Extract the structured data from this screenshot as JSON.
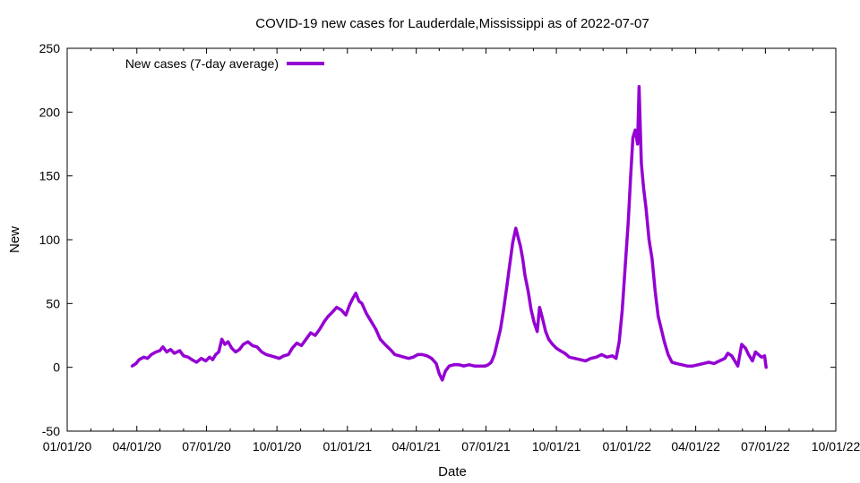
{
  "chart_data": {
    "type": "line",
    "title": "COVID-19 new cases for Lauderdale,Mississippi as of 2022-07-07",
    "xlabel": "Date",
    "ylabel": "New",
    "xlim": [
      "2020-01-01",
      "2022-10-01"
    ],
    "ylim": [
      -50,
      250
    ],
    "x_ticks": [
      "01/01/20",
      "04/01/20",
      "07/01/20",
      "10/01/20",
      "01/01/21",
      "04/01/21",
      "07/01/21",
      "10/01/21",
      "01/01/22",
      "04/01/22",
      "07/01/22",
      "10/01/22"
    ],
    "y_ticks": [
      "-50",
      "0",
      "50",
      "100",
      "150",
      "200",
      "250"
    ],
    "grid": false,
    "legend_position": "top-left",
    "series": [
      {
        "name": "New cases (7-day average)",
        "color": "#9400d3",
        "points": [
          [
            "2020-03-26",
            1
          ],
          [
            "2020-03-31",
            3
          ],
          [
            "2020-04-04",
            6
          ],
          [
            "2020-04-10",
            8
          ],
          [
            "2020-04-15",
            7
          ],
          [
            "2020-04-20",
            10
          ],
          [
            "2020-04-26",
            12
          ],
          [
            "2020-05-01",
            13
          ],
          [
            "2020-05-05",
            16
          ],
          [
            "2020-05-10",
            12
          ],
          [
            "2020-05-15",
            14
          ],
          [
            "2020-05-20",
            11
          ],
          [
            "2020-05-27",
            13
          ],
          [
            "2020-06-01",
            9
          ],
          [
            "2020-06-07",
            8
          ],
          [
            "2020-06-12",
            6
          ],
          [
            "2020-06-18",
            4
          ],
          [
            "2020-06-24",
            7
          ],
          [
            "2020-06-30",
            5
          ],
          [
            "2020-07-05",
            8
          ],
          [
            "2020-07-09",
            6
          ],
          [
            "2020-07-13",
            10
          ],
          [
            "2020-07-17",
            12
          ],
          [
            "2020-07-21",
            22
          ],
          [
            "2020-07-25",
            18
          ],
          [
            "2020-07-29",
            20
          ],
          [
            "2020-08-03",
            15
          ],
          [
            "2020-08-08",
            12
          ],
          [
            "2020-08-13",
            14
          ],
          [
            "2020-08-18",
            18
          ],
          [
            "2020-08-24",
            20
          ],
          [
            "2020-08-30",
            17
          ],
          [
            "2020-09-05",
            16
          ],
          [
            "2020-09-11",
            12
          ],
          [
            "2020-09-17",
            10
          ],
          [
            "2020-09-23",
            9
          ],
          [
            "2020-09-29",
            8
          ],
          [
            "2020-10-04",
            7
          ],
          [
            "2020-10-10",
            9
          ],
          [
            "2020-10-16",
            10
          ],
          [
            "2020-10-21",
            15
          ],
          [
            "2020-10-27",
            19
          ],
          [
            "2020-11-02",
            17
          ],
          [
            "2020-11-08",
            22
          ],
          [
            "2020-11-14",
            27
          ],
          [
            "2020-11-20",
            25
          ],
          [
            "2020-11-26",
            30
          ],
          [
            "2020-12-02",
            36
          ],
          [
            "2020-12-07",
            40
          ],
          [
            "2020-12-12",
            43
          ],
          [
            "2020-12-18",
            47
          ],
          [
            "2020-12-24",
            45
          ],
          [
            "2020-12-30",
            41
          ],
          [
            "2021-01-04",
            49
          ],
          [
            "2021-01-08",
            54
          ],
          [
            "2021-01-12",
            58
          ],
          [
            "2021-01-16",
            52
          ],
          [
            "2021-01-20",
            50
          ],
          [
            "2021-01-26",
            42
          ],
          [
            "2021-02-01",
            36
          ],
          [
            "2021-02-07",
            30
          ],
          [
            "2021-02-13",
            22
          ],
          [
            "2021-02-19",
            18
          ],
          [
            "2021-02-26",
            14
          ],
          [
            "2021-03-04",
            10
          ],
          [
            "2021-03-10",
            9
          ],
          [
            "2021-03-16",
            8
          ],
          [
            "2021-03-22",
            7
          ],
          [
            "2021-03-28",
            8
          ],
          [
            "2021-04-03",
            10
          ],
          [
            "2021-04-09",
            10
          ],
          [
            "2021-04-15",
            9
          ],
          [
            "2021-04-21",
            7
          ],
          [
            "2021-04-27",
            3
          ],
          [
            "2021-05-01",
            -5
          ],
          [
            "2021-05-05",
            -10
          ],
          [
            "2021-05-09",
            -3
          ],
          [
            "2021-05-14",
            1
          ],
          [
            "2021-05-20",
            2
          ],
          [
            "2021-05-27",
            2
          ],
          [
            "2021-06-02",
            1
          ],
          [
            "2021-06-09",
            2
          ],
          [
            "2021-06-16",
            1
          ],
          [
            "2021-06-23",
            1
          ],
          [
            "2021-06-30",
            1
          ],
          [
            "2021-07-04",
            2
          ],
          [
            "2021-07-08",
            4
          ],
          [
            "2021-07-12",
            10
          ],
          [
            "2021-07-16",
            20
          ],
          [
            "2021-07-20",
            30
          ],
          [
            "2021-07-24",
            45
          ],
          [
            "2021-07-28",
            62
          ],
          [
            "2021-08-01",
            80
          ],
          [
            "2021-08-05",
            98
          ],
          [
            "2021-08-09",
            109
          ],
          [
            "2021-08-12",
            102
          ],
          [
            "2021-08-15",
            95
          ],
          [
            "2021-08-18",
            85
          ],
          [
            "2021-08-21",
            72
          ],
          [
            "2021-08-25",
            60
          ],
          [
            "2021-08-29",
            45
          ],
          [
            "2021-09-02",
            35
          ],
          [
            "2021-09-06",
            28
          ],
          [
            "2021-09-09",
            47
          ],
          [
            "2021-09-13",
            38
          ],
          [
            "2021-09-17",
            28
          ],
          [
            "2021-09-21",
            22
          ],
          [
            "2021-09-26",
            18
          ],
          [
            "2021-10-01",
            15
          ],
          [
            "2021-10-06",
            13
          ],
          [
            "2021-10-12",
            11
          ],
          [
            "2021-10-18",
            8
          ],
          [
            "2021-10-25",
            7
          ],
          [
            "2021-11-01",
            6
          ],
          [
            "2021-11-08",
            5
          ],
          [
            "2021-11-15",
            7
          ],
          [
            "2021-11-22",
            8
          ],
          [
            "2021-11-29",
            10
          ],
          [
            "2021-12-06",
            8
          ],
          [
            "2021-12-13",
            9
          ],
          [
            "2021-12-18",
            7
          ],
          [
            "2021-12-22",
            20
          ],
          [
            "2021-12-26",
            45
          ],
          [
            "2021-12-30",
            80
          ],
          [
            "2022-01-03",
            115
          ],
          [
            "2022-01-06",
            150
          ],
          [
            "2022-01-09",
            180
          ],
          [
            "2022-01-12",
            186
          ],
          [
            "2022-01-15",
            175
          ],
          [
            "2022-01-17",
            220
          ],
          [
            "2022-01-20",
            160
          ],
          [
            "2022-01-23",
            140
          ],
          [
            "2022-01-26",
            125
          ],
          [
            "2022-01-30",
            100
          ],
          [
            "2022-02-03",
            85
          ],
          [
            "2022-02-07",
            60
          ],
          [
            "2022-02-11",
            40
          ],
          [
            "2022-02-15",
            30
          ],
          [
            "2022-02-19",
            20
          ],
          [
            "2022-02-24",
            10
          ],
          [
            "2022-03-01",
            4
          ],
          [
            "2022-03-07",
            3
          ],
          [
            "2022-03-14",
            2
          ],
          [
            "2022-03-21",
            1
          ],
          [
            "2022-03-28",
            1
          ],
          [
            "2022-04-04",
            2
          ],
          [
            "2022-04-11",
            3
          ],
          [
            "2022-04-18",
            4
          ],
          [
            "2022-04-25",
            3
          ],
          [
            "2022-05-02",
            5
          ],
          [
            "2022-05-09",
            7
          ],
          [
            "2022-05-13",
            11
          ],
          [
            "2022-05-18",
            9
          ],
          [
            "2022-05-22",
            5
          ],
          [
            "2022-05-26",
            1
          ],
          [
            "2022-05-31",
            18
          ],
          [
            "2022-06-05",
            15
          ],
          [
            "2022-06-09",
            10
          ],
          [
            "2022-06-14",
            5
          ],
          [
            "2022-06-18",
            12
          ],
          [
            "2022-06-22",
            10
          ],
          [
            "2022-06-26",
            8
          ],
          [
            "2022-06-30",
            9
          ],
          [
            "2022-07-02",
            0
          ]
        ]
      }
    ]
  }
}
